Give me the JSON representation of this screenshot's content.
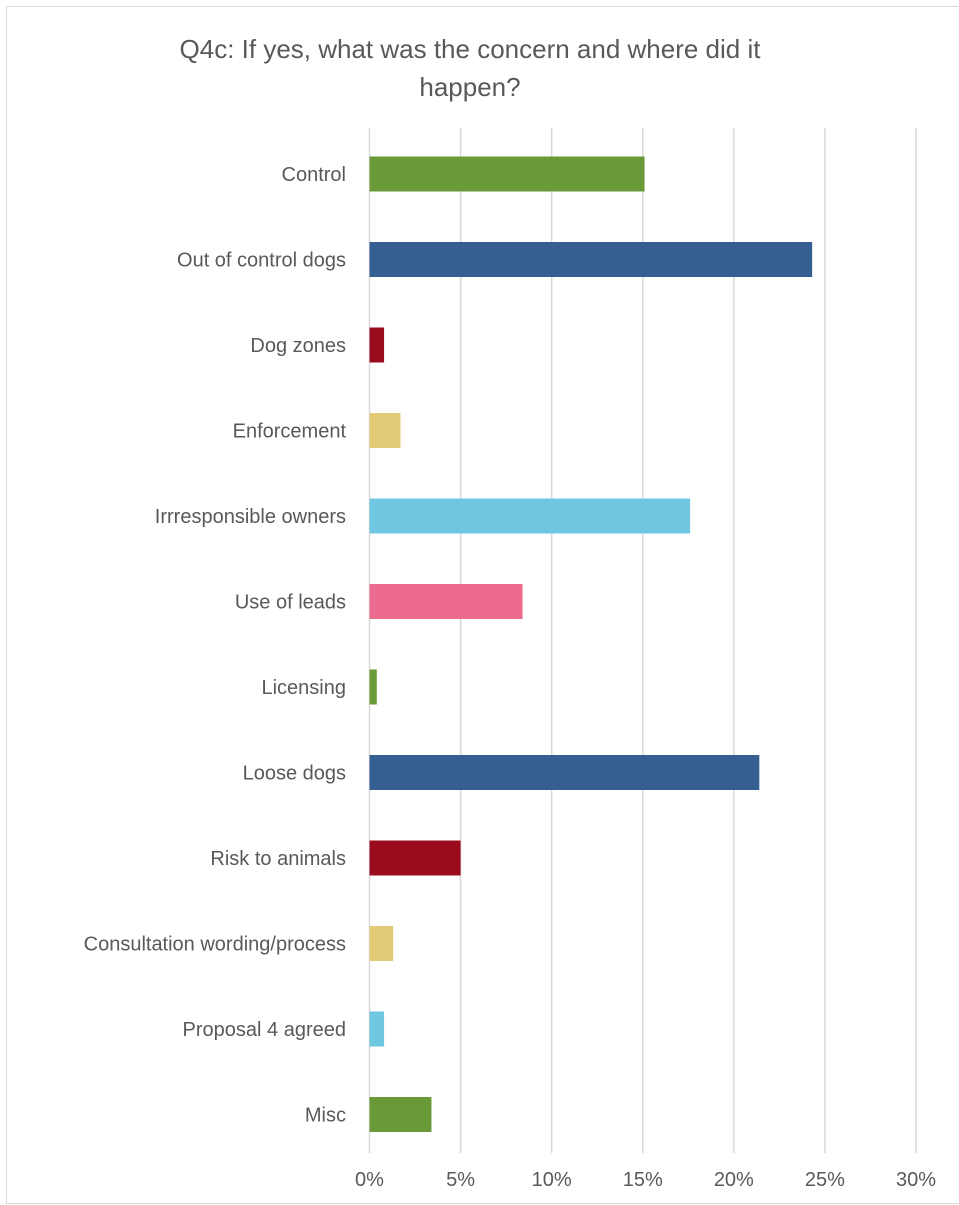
{
  "chart_data": {
    "type": "bar",
    "orientation": "horizontal",
    "title": "Q4c: If yes, what was the concern and where did it happen?",
    "categories": [
      "Control",
      "Out of control dogs",
      "Dog zones",
      "Enforcement",
      "Irrresponsible owners",
      "Use of leads",
      "Licensing",
      "Loose dogs",
      "Risk to animals",
      "Consultation wording/process",
      "Proposal 4 agreed",
      "Misc"
    ],
    "values": [
      0.151,
      0.243,
      0.008,
      0.017,
      0.176,
      0.084,
      0.004,
      0.214,
      0.05,
      0.013,
      0.008,
      0.034
    ],
    "colors": [
      "#6a9a37",
      "#365f91",
      "#9b0b1e",
      "#e3cb78",
      "#6ec6e0",
      "#ed6b8f",
      "#6a9a37",
      "#365f91",
      "#9b0b1e",
      "#e3cb78",
      "#6ec6e0",
      "#6a9a37"
    ],
    "xlim": [
      0,
      0.3
    ],
    "xticks": [
      0,
      0.05,
      0.1,
      0.15,
      0.2,
      0.25,
      0.3
    ],
    "xtick_labels": [
      "0%",
      "5%",
      "10%",
      "15%",
      "20%",
      "25%",
      "30%"
    ],
    "grid": true,
    "legend": "none"
  }
}
